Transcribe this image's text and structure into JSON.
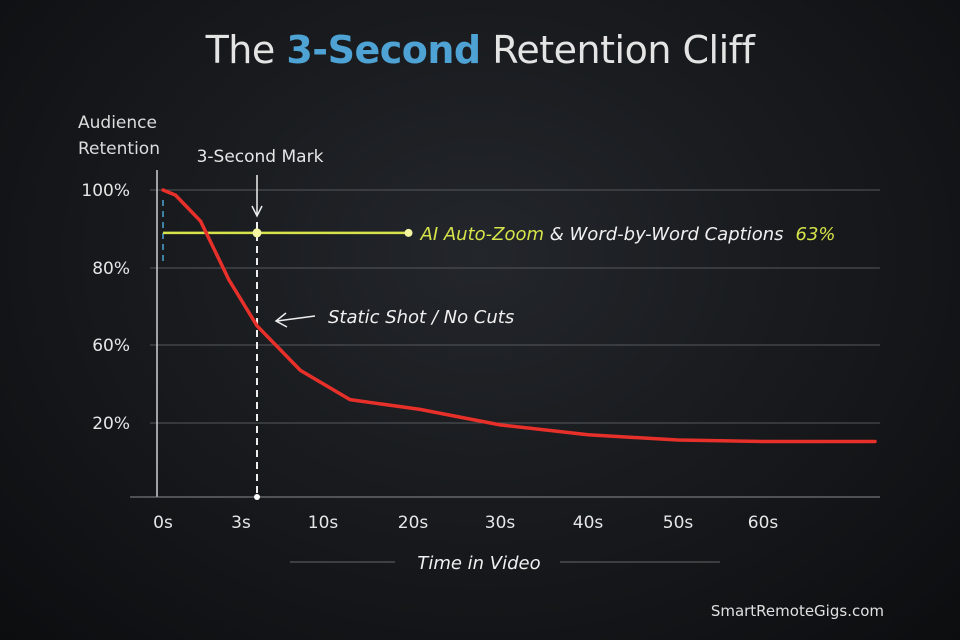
{
  "title": {
    "prefix": "The ",
    "highlight": "3-Second",
    "suffix": " Retention Cliff"
  },
  "watermark": "SmartRemoteGigs.com",
  "colors": {
    "curve": "#e8302a",
    "highlight": "#4ea3d4",
    "ai_line": "#d6e34a",
    "background": "#15171a"
  },
  "chart_data": {
    "type": "line",
    "title": "The 3-Second Retention Cliff",
    "ylabel": [
      "Audience",
      "Retention"
    ],
    "xlabel": "Time in Video",
    "y_ticks": [
      "100%",
      "80%",
      "60%",
      "20%"
    ],
    "y_tick_values": [
      100,
      80,
      60,
      20
    ],
    "x_ticks": [
      "0s",
      "3s",
      "10s",
      "20s",
      "30s",
      "40s",
      "50s",
      "60s"
    ],
    "x_tick_values": [
      0,
      3,
      10,
      20,
      30,
      40,
      50,
      60
    ],
    "grid": true,
    "series": [
      {
        "x": [
          0,
          0.4,
          1.2,
          2.1,
          3,
          7.6,
          13,
          20.8,
          30,
          40,
          50,
          60,
          72
        ],
        "y": [
          100,
          98.7,
          92,
          77,
          65,
          47,
          32,
          27,
          19.5,
          16.8,
          15.4,
          15,
          15
        ]
      }
    ],
    "annotations": {
      "mark": {
        "label": "3-Second Mark",
        "x": 3
      },
      "static": {
        "label": "Static Shot / No Cuts"
      },
      "ai_line": {
        "label_accent": "AI Auto-Zoom",
        "label_rest": " & Word-by-Word Captions",
        "value_label": "63%",
        "level": 89,
        "x_range": [
          0,
          19.5
        ]
      }
    }
  }
}
